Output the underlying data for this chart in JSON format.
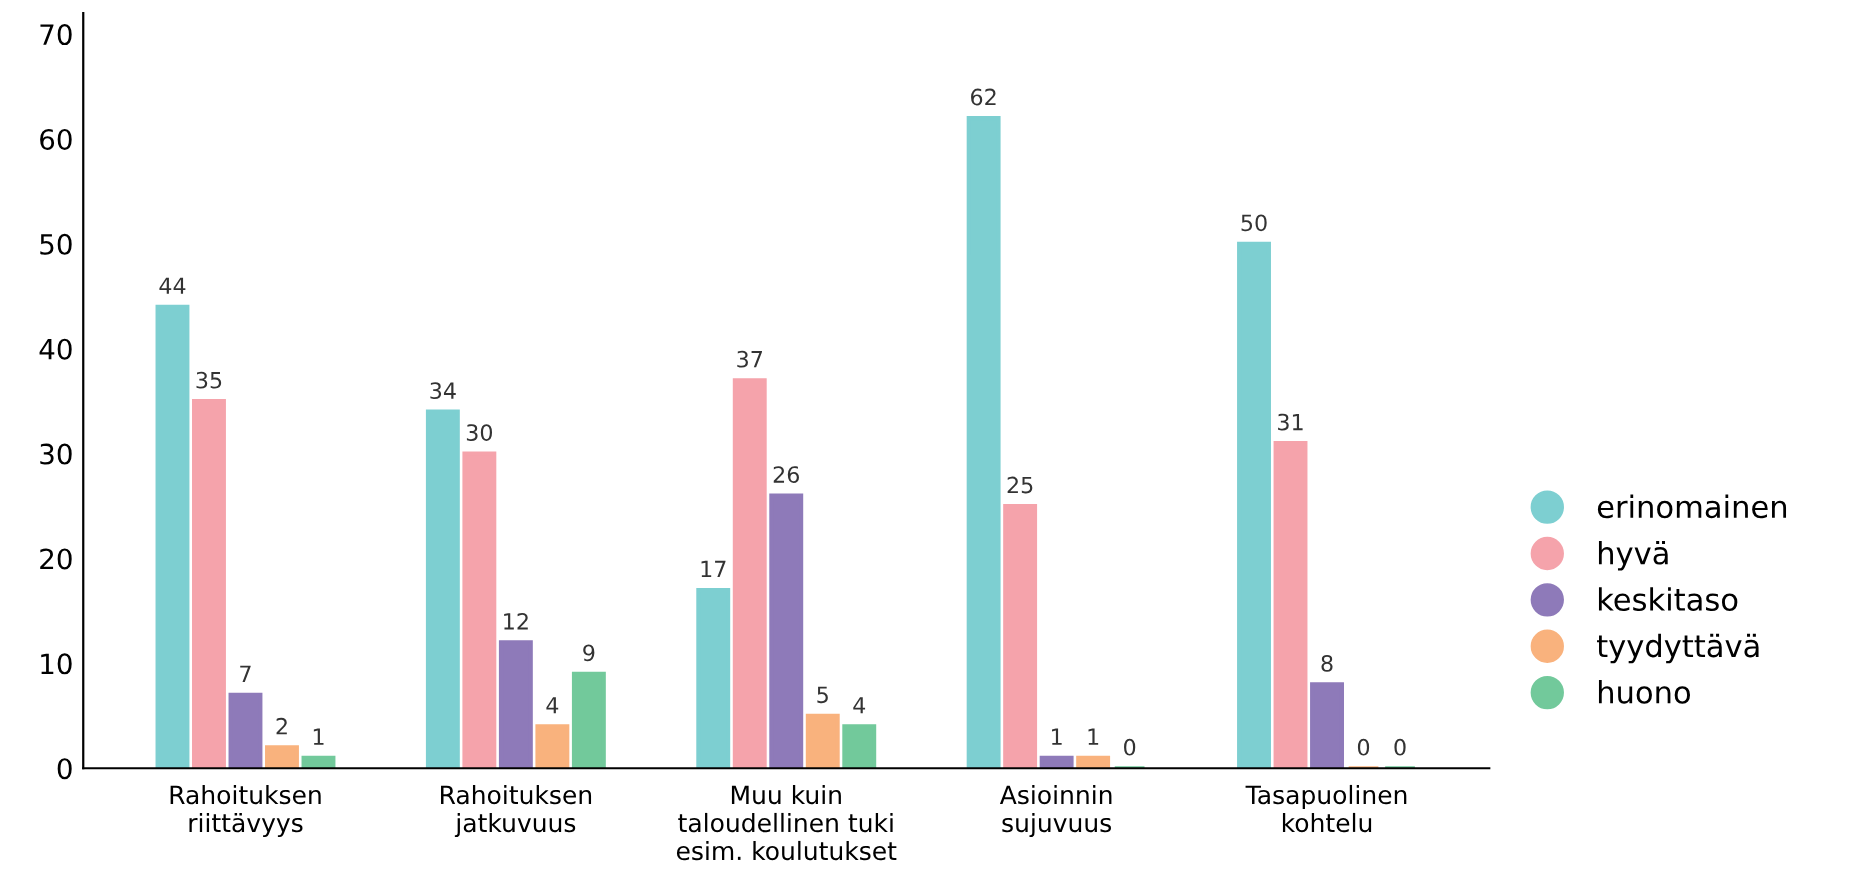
{
  "chart_data": {
    "type": "bar",
    "categories": [
      "Rahoituksen\nriittävyys",
      "Rahoituksen\njatkuvuus",
      "Muu kuin\ntaloudellinen tuki\nesim. koulutukset",
      "Asioinnin\nsujuvuus",
      "Tasapuolinen\nkohtelu"
    ],
    "series": [
      {
        "name": "erinomainen",
        "color": "#7dcfd1",
        "values": [
          44,
          34,
          17,
          62,
          50
        ]
      },
      {
        "name": "hyvä",
        "color": "#f5a3ab",
        "values": [
          35,
          30,
          37,
          25,
          31
        ]
      },
      {
        "name": "keskitaso",
        "color": "#8e7ab9",
        "values": [
          7,
          12,
          26,
          1,
          8
        ]
      },
      {
        "name": "tyydyttävä",
        "color": "#f9b27d",
        "values": [
          2,
          4,
          5,
          1,
          0
        ]
      },
      {
        "name": "huono",
        "color": "#72c99b",
        "values": [
          1,
          9,
          4,
          0,
          0
        ]
      }
    ],
    "ylim": [
      0,
      72
    ],
    "yticks": [
      0,
      10,
      20,
      30,
      40,
      50,
      60,
      70
    ],
    "grid": false,
    "legend": "right",
    "data_labels": true
  }
}
